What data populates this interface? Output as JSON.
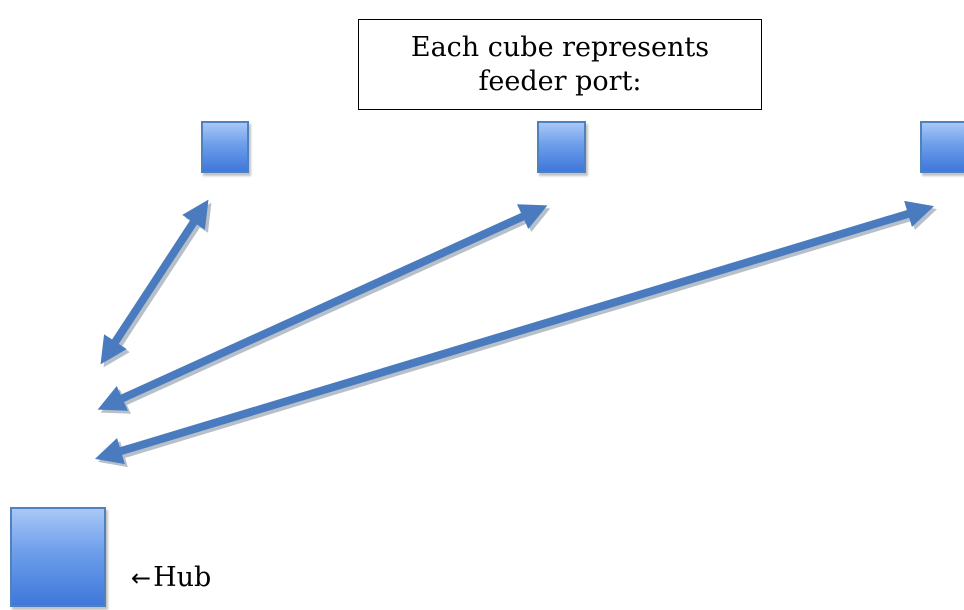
{
  "callout": {
    "line1": "Each cube represents",
    "line2": "feeder port:"
  },
  "hub": {
    "arrow": "←",
    "label": "Hub"
  },
  "colors": {
    "cube_border": "#4f81bd",
    "arrow": "#4a7bbf",
    "arrow_shadow": "#9aa6b3"
  },
  "icons": [
    "feeder-port-cube",
    "hub-cube",
    "double-headed-arrow",
    "left-arrow-glyph"
  ]
}
